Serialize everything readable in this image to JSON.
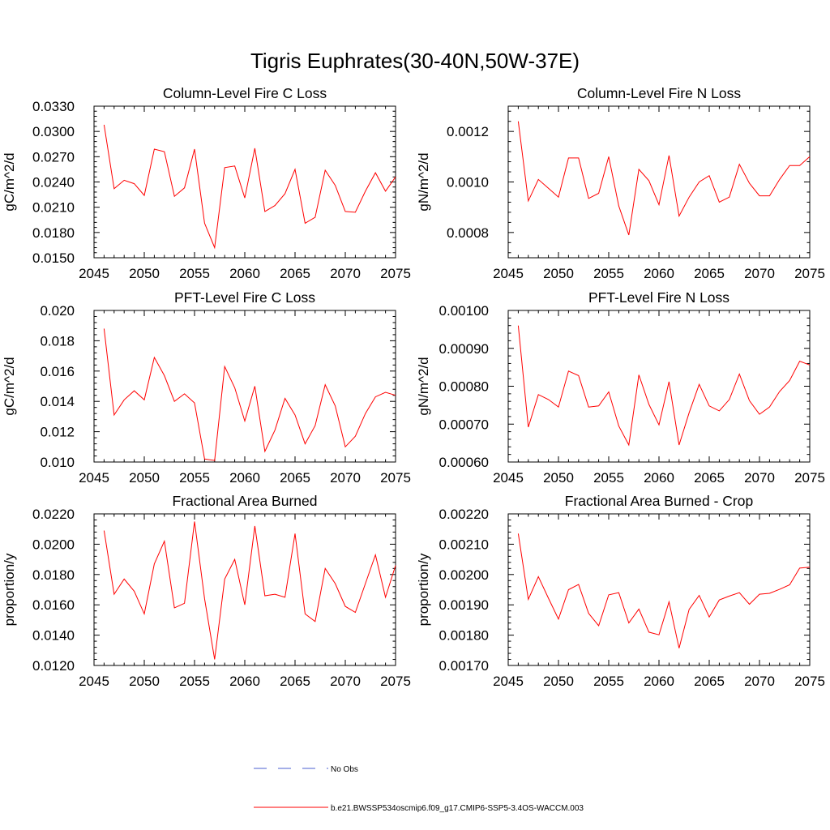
{
  "figure": {
    "title": "Tigris Euphrates(30-40N,50W-37E)"
  },
  "legend": {
    "items": [
      {
        "label": "No Obs",
        "color": "#4b5fd0",
        "style": "dashed"
      },
      {
        "label": "b.e21.BWSSP534oscmip6.f09_g17.CMIP6-SSP5-3.4OS-WACCM.003",
        "color": "#ff0000",
        "style": "solid"
      }
    ]
  },
  "chart_data": [
    {
      "type": "line",
      "title": "Column-Level Fire C Loss",
      "xlabel": "",
      "ylabel": "gC/m^2/d",
      "xlim": [
        2045,
        2075
      ],
      "ylim": [
        0.015,
        0.033
      ],
      "xticks": [
        2045,
        2050,
        2055,
        2060,
        2065,
        2070,
        2075
      ],
      "yticks": [
        0.015,
        0.018,
        0.021,
        0.024,
        0.027,
        0.03,
        0.033
      ],
      "ytick_labels": [
        "0.0150",
        "0.0180",
        "0.0210",
        "0.0240",
        "0.0270",
        "0.0300",
        "0.0330"
      ],
      "series": [
        {
          "name": "b.e21.BWSSP534oscmip6.f09_g17.CMIP6-SSP5-3.4OS-WACCM.003",
          "color": "#ff0000",
          "x": [
            2046,
            2047,
            2048,
            2049,
            2050,
            2051,
            2052,
            2053,
            2054,
            2055,
            2056,
            2057,
            2058,
            2059,
            2060,
            2061,
            2062,
            2063,
            2064,
            2065,
            2066,
            2067,
            2068,
            2069,
            2070,
            2071,
            2072,
            2073,
            2074,
            2075
          ],
          "values": [
            0.0308,
            0.0232,
            0.0242,
            0.0238,
            0.0224,
            0.0279,
            0.0276,
            0.0223,
            0.0233,
            0.0279,
            0.0191,
            0.0162,
            0.0257,
            0.0259,
            0.0221,
            0.028,
            0.0205,
            0.0212,
            0.0226,
            0.0255,
            0.0191,
            0.0198,
            0.0254,
            0.0236,
            0.0205,
            0.0204,
            0.0229,
            0.0251,
            0.0229,
            0.0246
          ]
        }
      ]
    },
    {
      "type": "line",
      "title": "Column-Level Fire N Loss",
      "xlabel": "",
      "ylabel": "gN/m^2/d",
      "xlim": [
        2045,
        2075
      ],
      "ylim": [
        0.0007,
        0.0013
      ],
      "xticks": [
        2045,
        2050,
        2055,
        2060,
        2065,
        2070,
        2075
      ],
      "yticks": [
        0.0008,
        0.001,
        0.0012
      ],
      "ytick_labels": [
        "0.0008",
        "0.0010",
        "0.0012"
      ],
      "series": [
        {
          "name": "b.e21.BWSSP534oscmip6.f09_g17.CMIP6-SSP5-3.4OS-WACCM.003",
          "color": "#ff0000",
          "x": [
            2046,
            2047,
            2048,
            2049,
            2050,
            2051,
            2052,
            2053,
            2054,
            2055,
            2056,
            2057,
            2058,
            2059,
            2060,
            2061,
            2062,
            2063,
            2064,
            2065,
            2066,
            2067,
            2068,
            2069,
            2070,
            2071,
            2072,
            2073,
            2074,
            2075
          ],
          "values": [
            0.00124,
            0.000925,
            0.00101,
            0.000975,
            0.00094,
            0.001095,
            0.001095,
            0.000935,
            0.000955,
            0.0011,
            0.000905,
            0.00079,
            0.00105,
            0.001005,
            0.00091,
            0.001105,
            0.000865,
            0.00094,
            0.001,
            0.001025,
            0.00092,
            0.00094,
            0.00107,
            0.000995,
            0.000945,
            0.000945,
            0.00101,
            0.001065,
            0.001065,
            0.0011
          ]
        }
      ]
    },
    {
      "type": "line",
      "title": "PFT-Level Fire C Loss",
      "xlabel": "",
      "ylabel": "gC/m^2/d",
      "xlim": [
        2045,
        2075
      ],
      "ylim": [
        0.01,
        0.02
      ],
      "xticks": [
        2045,
        2050,
        2055,
        2060,
        2065,
        2070,
        2075
      ],
      "yticks": [
        0.01,
        0.012,
        0.014,
        0.016,
        0.018,
        0.02
      ],
      "ytick_labels": [
        "0.010",
        "0.012",
        "0.014",
        "0.016",
        "0.018",
        "0.020"
      ],
      "series": [
        {
          "name": "b.e21.BWSSP534oscmip6.f09_g17.CMIP6-SSP5-3.4OS-WACCM.003",
          "color": "#ff0000",
          "x": [
            2046,
            2047,
            2048,
            2049,
            2050,
            2051,
            2052,
            2053,
            2054,
            2055,
            2056,
            2057,
            2058,
            2059,
            2060,
            2061,
            2062,
            2063,
            2064,
            2065,
            2066,
            2067,
            2068,
            2069,
            2070,
            2071,
            2072,
            2073,
            2074,
            2075
          ],
          "values": [
            0.0188,
            0.0131,
            0.0141,
            0.0147,
            0.0141,
            0.0169,
            0.0157,
            0.014,
            0.0145,
            0.0139,
            0.0102,
            0.0101,
            0.0163,
            0.0149,
            0.0127,
            0.015,
            0.0107,
            0.0121,
            0.0142,
            0.0131,
            0.0112,
            0.0124,
            0.0151,
            0.0137,
            0.011,
            0.0117,
            0.0132,
            0.0143,
            0.0146,
            0.0144
          ]
        }
      ]
    },
    {
      "type": "line",
      "title": "PFT-Level Fire N Loss",
      "xlabel": "",
      "ylabel": "gN/m^2/d",
      "xlim": [
        2045,
        2075
      ],
      "ylim": [
        0.0006,
        0.001
      ],
      "xticks": [
        2045,
        2050,
        2055,
        2060,
        2065,
        2070,
        2075
      ],
      "yticks": [
        0.0006,
        0.0007,
        0.0008,
        0.0009,
        0.001
      ],
      "ytick_labels": [
        "0.00060",
        "0.00070",
        "0.00080",
        "0.00090",
        "0.00100"
      ],
      "series": [
        {
          "name": "b.e21.BWSSP534oscmip6.f09_g17.CMIP6-SSP5-3.4OS-WACCM.003",
          "color": "#ff0000",
          "x": [
            2046,
            2047,
            2048,
            2049,
            2050,
            2051,
            2052,
            2053,
            2054,
            2055,
            2056,
            2057,
            2058,
            2059,
            2060,
            2061,
            2062,
            2063,
            2064,
            2065,
            2066,
            2067,
            2068,
            2069,
            2070,
            2071,
            2072,
            2073,
            2074,
            2075
          ],
          "values": [
            0.00096,
            0.000692,
            0.000778,
            0.000765,
            0.000745,
            0.00084,
            0.000828,
            0.000745,
            0.000748,
            0.000785,
            0.000695,
            0.000645,
            0.00083,
            0.000752,
            0.000698,
            0.000812,
            0.000645,
            0.00073,
            0.000805,
            0.000748,
            0.000735,
            0.000765,
            0.000832,
            0.000762,
            0.000726,
            0.000745,
            0.000786,
            0.000815,
            0.000866,
            0.000856
          ]
        }
      ]
    },
    {
      "type": "line",
      "title": "Fractional Area Burned",
      "xlabel": "",
      "ylabel": "proportion/y",
      "xlim": [
        2045,
        2075
      ],
      "ylim": [
        0.012,
        0.022
      ],
      "xticks": [
        2045,
        2050,
        2055,
        2060,
        2065,
        2070,
        2075
      ],
      "yticks": [
        0.012,
        0.014,
        0.016,
        0.018,
        0.02,
        0.022
      ],
      "ytick_labels": [
        "0.0120",
        "0.0140",
        "0.0160",
        "0.0180",
        "0.0200",
        "0.0220"
      ],
      "series": [
        {
          "name": "b.e21.BWSSP534oscmip6.f09_g17.CMIP6-SSP5-3.4OS-WACCM.003",
          "color": "#ff0000",
          "x": [
            2046,
            2047,
            2048,
            2049,
            2050,
            2051,
            2052,
            2053,
            2054,
            2055,
            2056,
            2057,
            2058,
            2059,
            2060,
            2061,
            2062,
            2063,
            2064,
            2065,
            2066,
            2067,
            2068,
            2069,
            2070,
            2071,
            2072,
            2073,
            2074,
            2075
          ],
          "values": [
            0.0209,
            0.0167,
            0.0177,
            0.0169,
            0.0154,
            0.0187,
            0.0202,
            0.0158,
            0.0161,
            0.0215,
            0.0164,
            0.0124,
            0.0177,
            0.019,
            0.016,
            0.0212,
            0.0166,
            0.0167,
            0.0165,
            0.0207,
            0.0154,
            0.0149,
            0.0184,
            0.0174,
            0.0159,
            0.0155,
            0.0174,
            0.0193,
            0.0165,
            0.0186
          ]
        }
      ]
    },
    {
      "type": "line",
      "title": "Fractional Area Burned - Crop",
      "xlabel": "",
      "ylabel": "proportion/y",
      "xlim": [
        2045,
        2075
      ],
      "ylim": [
        0.0017,
        0.0022
      ],
      "xticks": [
        2045,
        2050,
        2055,
        2060,
        2065,
        2070,
        2075
      ],
      "yticks": [
        0.0017,
        0.0018,
        0.0019,
        0.002,
        0.0021,
        0.0022
      ],
      "ytick_labels": [
        "0.00170",
        "0.00180",
        "0.00190",
        "0.00200",
        "0.00210",
        "0.00220"
      ],
      "series": [
        {
          "name": "b.e21.BWSSP534oscmip6.f09_g17.CMIP6-SSP5-3.4OS-WACCM.003",
          "color": "#ff0000",
          "x": [
            2046,
            2047,
            2048,
            2049,
            2050,
            2051,
            2052,
            2053,
            2054,
            2055,
            2056,
            2057,
            2058,
            2059,
            2060,
            2061,
            2062,
            2063,
            2064,
            2065,
            2066,
            2067,
            2068,
            2069,
            2070,
            2071,
            2072,
            2073,
            2074,
            2075
          ],
          "values": [
            0.002135,
            0.001918,
            0.001993,
            0.001922,
            0.001853,
            0.00195,
            0.001967,
            0.001872,
            0.001831,
            0.001933,
            0.00194,
            0.00184,
            0.001886,
            0.00181,
            0.001801,
            0.00191,
            0.001757,
            0.001885,
            0.001931,
            0.00186,
            0.001916,
            0.001929,
            0.00194,
            0.001902,
            0.001935,
            0.001938,
            0.001951,
            0.001966,
            0.002021,
            0.002024
          ]
        }
      ]
    }
  ]
}
